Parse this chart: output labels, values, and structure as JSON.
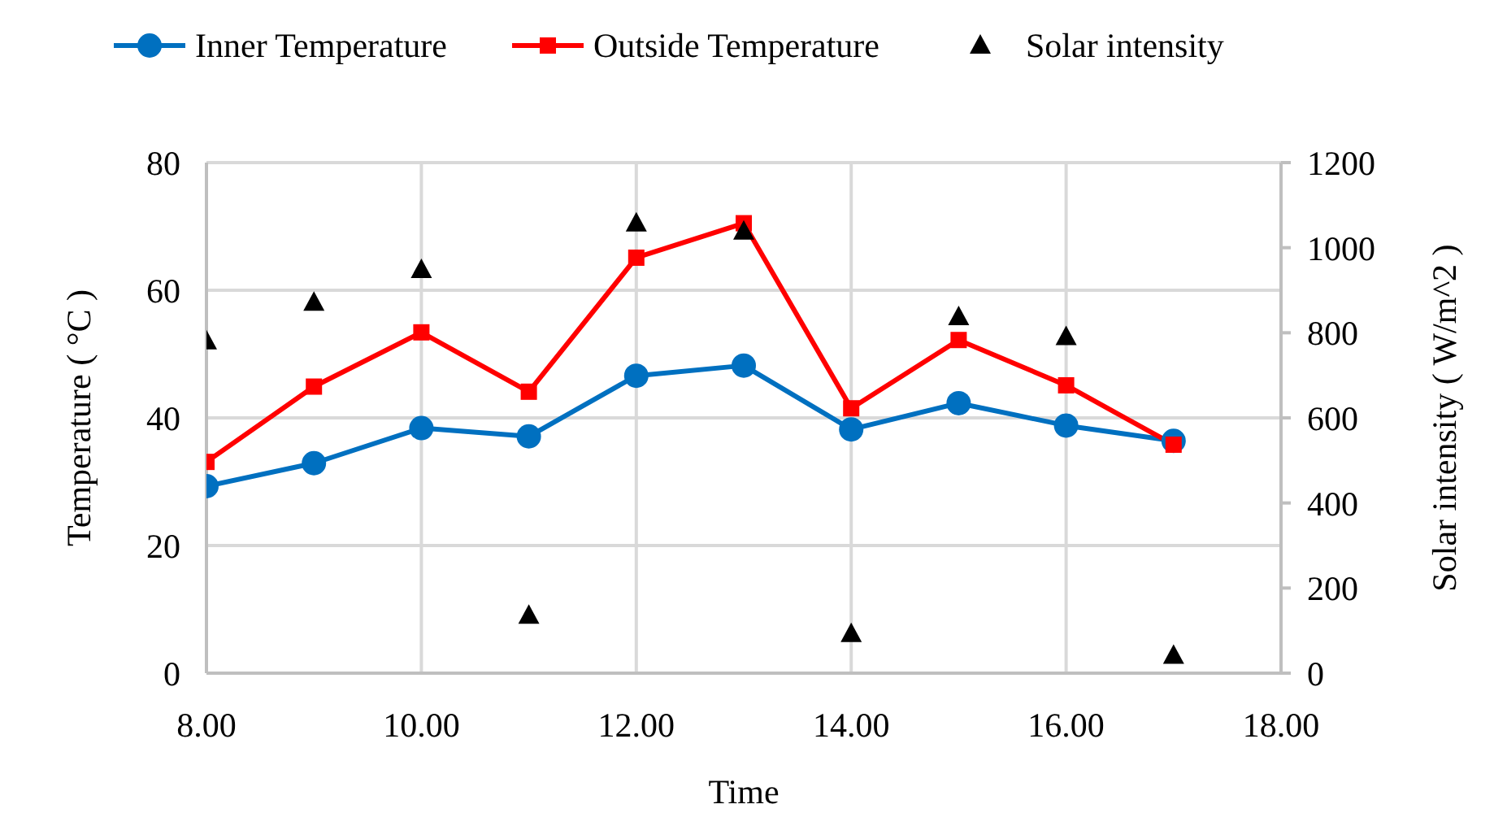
{
  "chart_data": {
    "type": "line",
    "xlabel": "Time",
    "ylabel": "Temperature ( °C )",
    "y2label": "Solar intensity ( W/m^2 )",
    "x": [
      8,
      9,
      10,
      11,
      12,
      13,
      14,
      15,
      16,
      17
    ],
    "series": [
      {
        "name": "Inner Temperature",
        "color": "#0070c0",
        "marker": "circle",
        "values": [
          29.3,
          32.9,
          38.4,
          37.1,
          46.6,
          48.2,
          38.2,
          42.3,
          38.8,
          36.4
        ]
      },
      {
        "name": "Outside Temperature",
        "color": "#ff0000",
        "marker": "square",
        "values": [
          33.1,
          44.9,
          53.4,
          44.1,
          65.1,
          70.5,
          41.5,
          52.2,
          45.1,
          35.8
        ]
      },
      {
        "name": "Solar intensity",
        "type": "scatter",
        "axis": "y2",
        "color": "#000000",
        "marker": "triangle",
        "values": [
          780,
          871,
          948,
          135,
          1057,
          1038,
          92,
          837,
          790,
          41
        ]
      }
    ],
    "xlim": [
      8,
      18
    ],
    "xticks": [
      {
        "value": 8,
        "label": "8.00"
      },
      {
        "value": 10,
        "label": "10.00"
      },
      {
        "value": 12,
        "label": "12.00"
      },
      {
        "value": 14,
        "label": "14.00"
      },
      {
        "value": 16,
        "label": "16.00"
      },
      {
        "value": 18,
        "label": "18.00"
      }
    ],
    "ylim": [
      0,
      80
    ],
    "yticks": [
      0,
      20,
      40,
      60,
      80
    ],
    "y2lim": [
      0,
      1200
    ],
    "y2ticks": [
      0,
      200,
      400,
      600,
      800,
      1000,
      1200
    ],
    "grid": true,
    "legend": "top"
  }
}
